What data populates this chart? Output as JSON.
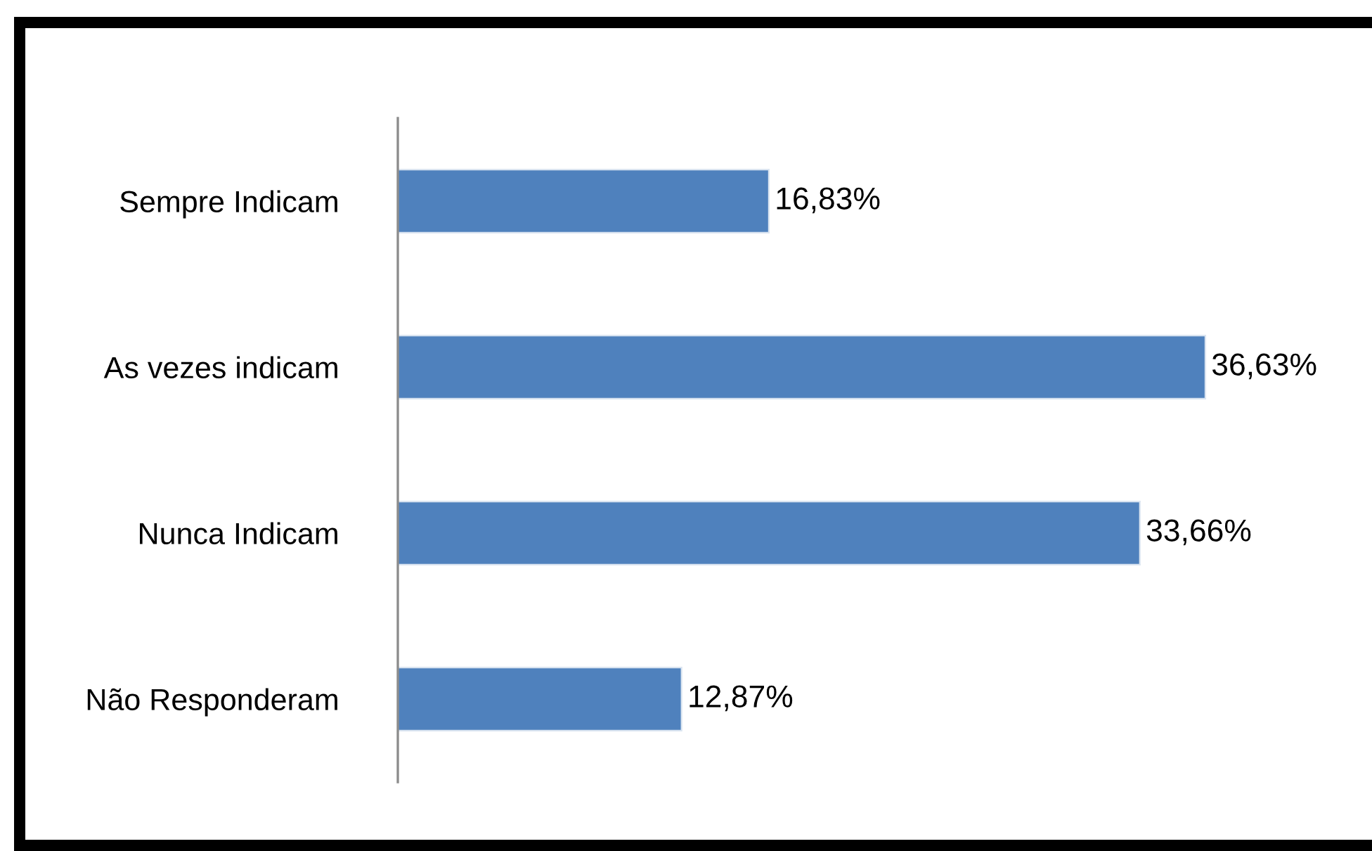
{
  "chart_data": {
    "type": "bar",
    "orientation": "horizontal",
    "categories": [
      "Sempre Indicam",
      "As vezes indicam",
      "Nunca Indicam",
      "Não Responderam"
    ],
    "values": [
      16.83,
      36.63,
      33.66,
      12.87
    ],
    "value_labels": [
      "16,83%",
      "36,63%",
      "33,66%",
      "12,87%"
    ],
    "color": "#4f81bd",
    "tick_labels": "y"
  }
}
